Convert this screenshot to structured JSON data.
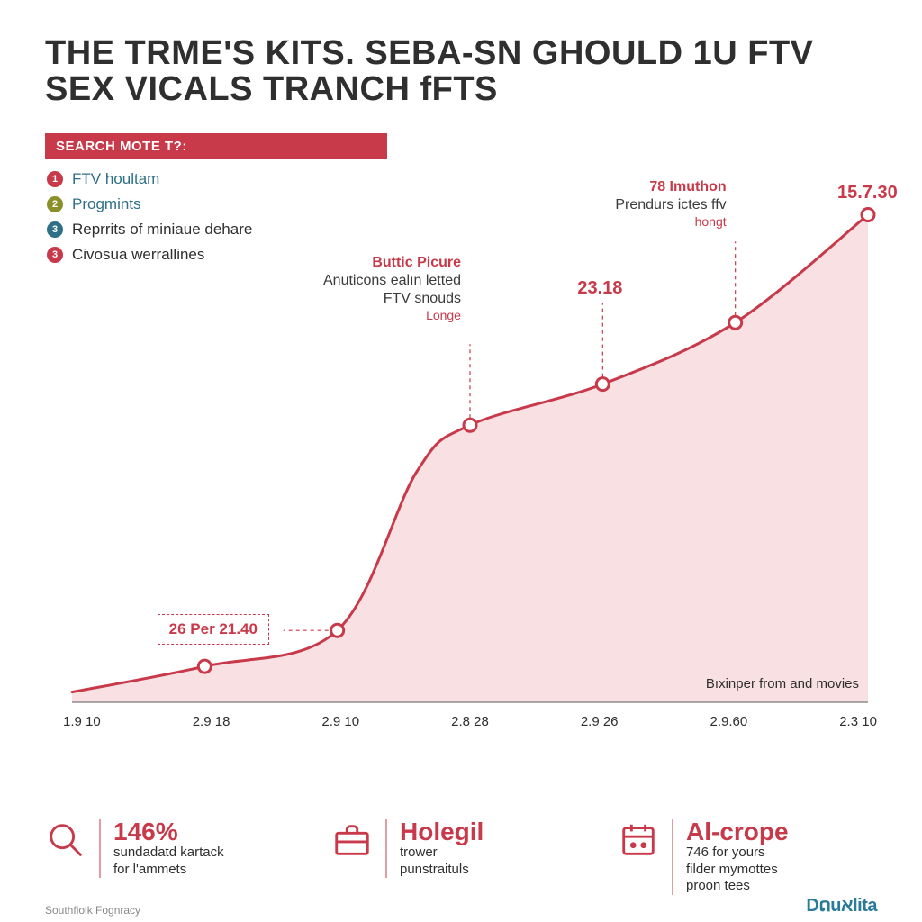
{
  "colors": {
    "accent": "#c8394a",
    "accent_soft": "#d26a75",
    "area_fill": "#f7dade",
    "text": "#2f2f2f",
    "muted": "#6b6b6b",
    "axis": "#7a7a7a",
    "bg": "#ffffff",
    "olive": "#8a8f2a",
    "teal": "#2f6f87",
    "brand": "#2a7a99"
  },
  "title": {
    "line1": "THE TRME'S KITS. SEBA-SN GHOULD 1U FTV",
    "line2": "SEX VICALS TRANCH fFTS",
    "fontsize": 38,
    "color": "#2f2f2f"
  },
  "legend": {
    "header": "SEARCH MOTE T?:",
    "header_bg": "#c8394a",
    "items": [
      {
        "num": "1",
        "bullet_color": "#c8394a",
        "label": "FTV houltam",
        "label_color": "#2f6f87"
      },
      {
        "num": "2",
        "bullet_color": "#8a8f2a",
        "label": "Progmints",
        "label_color": "#2f6f87"
      },
      {
        "num": "3",
        "bullet_color": "#2f6f87",
        "label": "Reprrits of miniaue dehare",
        "label_color": "#2f2f2f"
      },
      {
        "num": "3",
        "bullet_color": "#c8394a",
        "label": "Civosua werrallines",
        "label_color": "#2f2f2f"
      }
    ]
  },
  "chart": {
    "type": "area-line",
    "line_color": "#c8394a",
    "line_width": 3,
    "area_color": "#f7dade",
    "area_opacity": 0.85,
    "marker_fill": "#ffffff",
    "marker_stroke": "#c8394a",
    "marker_stroke_width": 3,
    "marker_radius": 7,
    "axis_color": "#7a7a7a",
    "xlim": [
      0,
      6
    ],
    "ylim": [
      0,
      100
    ],
    "points": [
      {
        "x": 0.0,
        "y": 2
      },
      {
        "x": 1.0,
        "y": 7
      },
      {
        "x": 2.0,
        "y": 14
      },
      {
        "x": 2.6,
        "y": 45
      },
      {
        "x": 3.0,
        "y": 54
      },
      {
        "x": 4.0,
        "y": 62
      },
      {
        "x": 5.0,
        "y": 74
      },
      {
        "x": 6.0,
        "y": 95
      }
    ],
    "marker_indices": [
      1,
      2,
      4,
      5,
      6,
      7
    ],
    "xticks": [
      "1.9 10",
      "2.9 18",
      "2.9 10",
      "2.8 28",
      "2.9 26",
      "2.9.60",
      "2.3 10"
    ],
    "xlabel_bottom_right": "Bıxinper from and movies",
    "peak_label": "15.7.30",
    "annotations": [
      {
        "attach_index": 4,
        "title": "Buttic Picure",
        "title_color": "#c8394a",
        "sub": "Anuticons ealın letted\nFTV snouds",
        "sub_color": "#3a3a3a",
        "tag": "Longe",
        "tag_color": "#c8394a"
      },
      {
        "attach_index": 5,
        "value": "23.18",
        "value_color": "#c8394a"
      },
      {
        "attach_index": 6,
        "title": "78 Imuthon",
        "title_color": "#c8394a",
        "sub": "Prendurs ictes ffv",
        "sub_color": "#3a3a3a",
        "tag": "hongt",
        "tag_color": "#c8394a"
      }
    ],
    "dashed_box": {
      "attach_index": 2,
      "text": "26 Per 21.40",
      "color": "#c8394a"
    }
  },
  "stats": [
    {
      "icon": "magnifier",
      "big": "146%",
      "lines": [
        "sundadatd kartack",
        "for l'ammets"
      ]
    },
    {
      "icon": "briefcase",
      "big": "Holegil",
      "lines": [
        "trower",
        "punstraituls"
      ]
    },
    {
      "icon": "calendar",
      "big": "Al-crope",
      "lines": [
        "746 for yours",
        "filder mymottes",
        "proon tees"
      ]
    }
  ],
  "source": "Southfiolk Fognracy",
  "brand": "Dດuאlita"
}
